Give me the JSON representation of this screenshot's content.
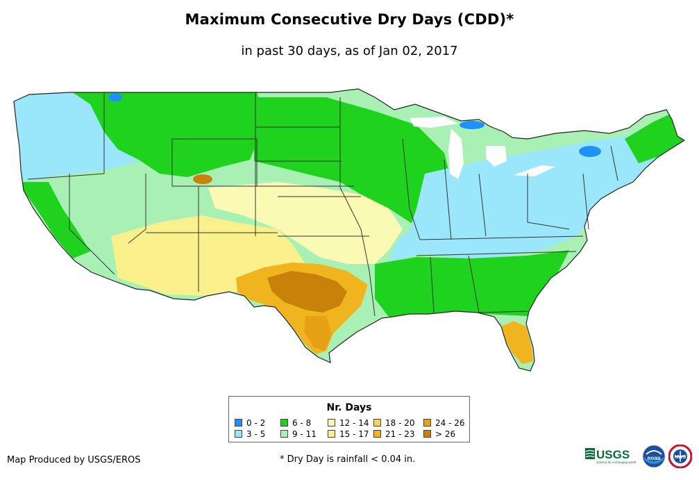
{
  "header": {
    "title": "Maximum Consecutive Dry Days (CDD)*",
    "subtitle": "in past 30 days, as of Jan 02, 2017"
  },
  "legend": {
    "title": "Nr. Days",
    "classes": [
      {
        "label": "0 - 2",
        "color": "#1e90ff"
      },
      {
        "label": "3 - 5",
        "color": "#9ae6fb"
      },
      {
        "label": "6 - 8",
        "color": "#1ed21e"
      },
      {
        "label": "9 - 11",
        "color": "#a8f0b4"
      },
      {
        "label": "12 - 14",
        "color": "#fafab4"
      },
      {
        "label": "15 - 17",
        "color": "#faf08c"
      },
      {
        "label": "18 - 20",
        "color": "#f5d25a"
      },
      {
        "label": "21 - 23",
        "color": "#f0b41e"
      },
      {
        "label": "24 - 26",
        "color": "#e6a014"
      },
      {
        "label": "> 26",
        "color": "#c8820a"
      }
    ]
  },
  "footer": {
    "credit": "Map Produced by USGS/EROS",
    "footnote": "* Dry Day is rainfall < 0.04 in.",
    "usgs_logo_text": "USGS",
    "usgs_tagline": "science for a changing world",
    "noaa_logo_text": "noaa",
    "nws_logo_text": "NWS"
  }
}
